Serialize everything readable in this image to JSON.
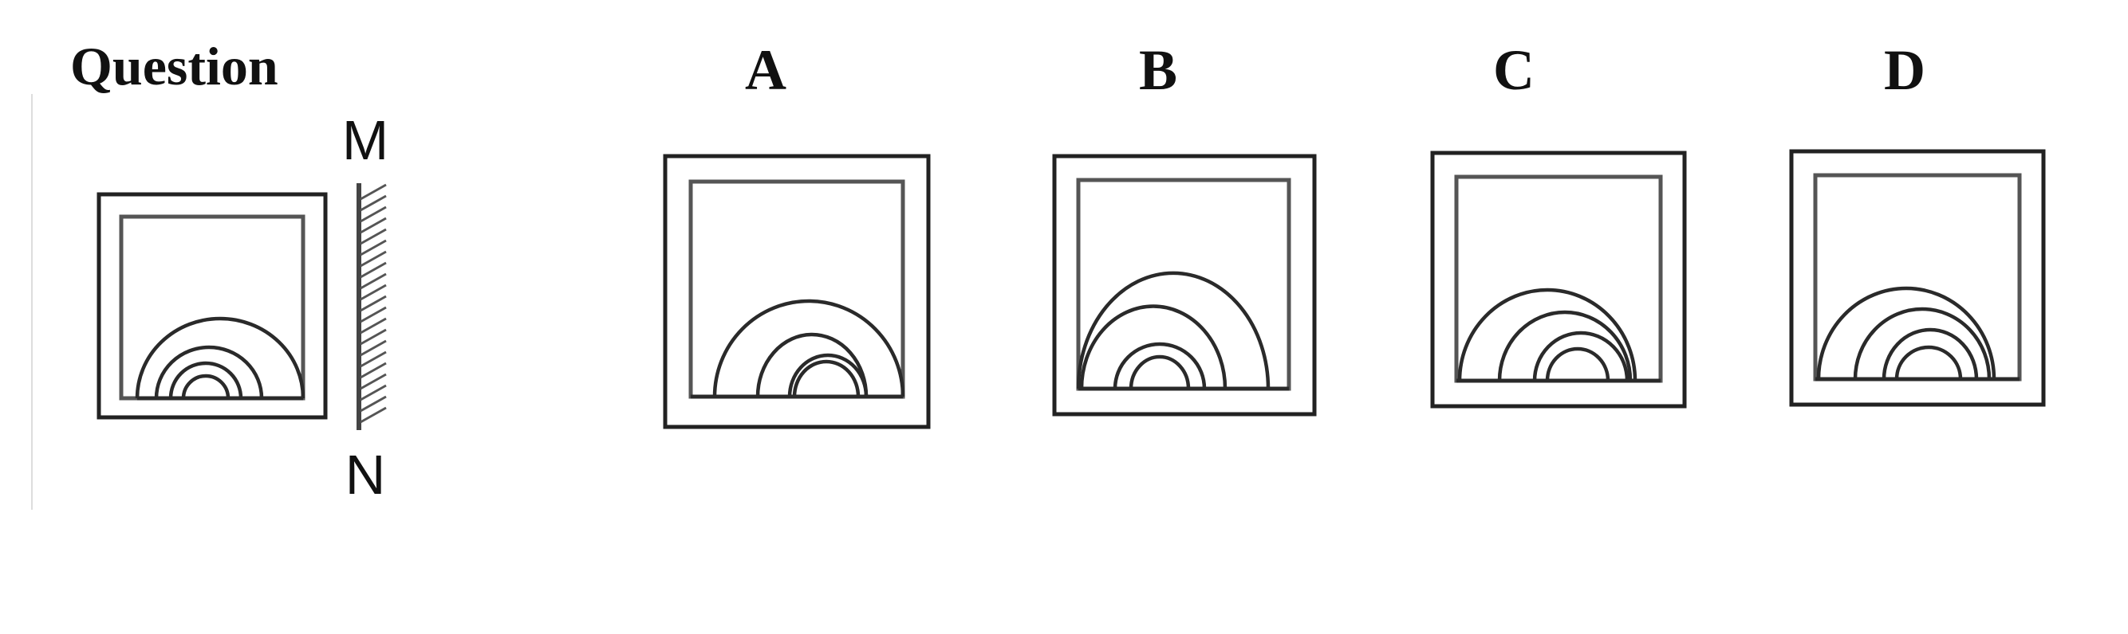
{
  "question_label": "Question",
  "mirror": {
    "top_label": "M",
    "bottom_label": "N"
  },
  "options": [
    {
      "label": "A"
    },
    {
      "label": "B"
    },
    {
      "label": "C"
    },
    {
      "label": "D"
    }
  ]
}
